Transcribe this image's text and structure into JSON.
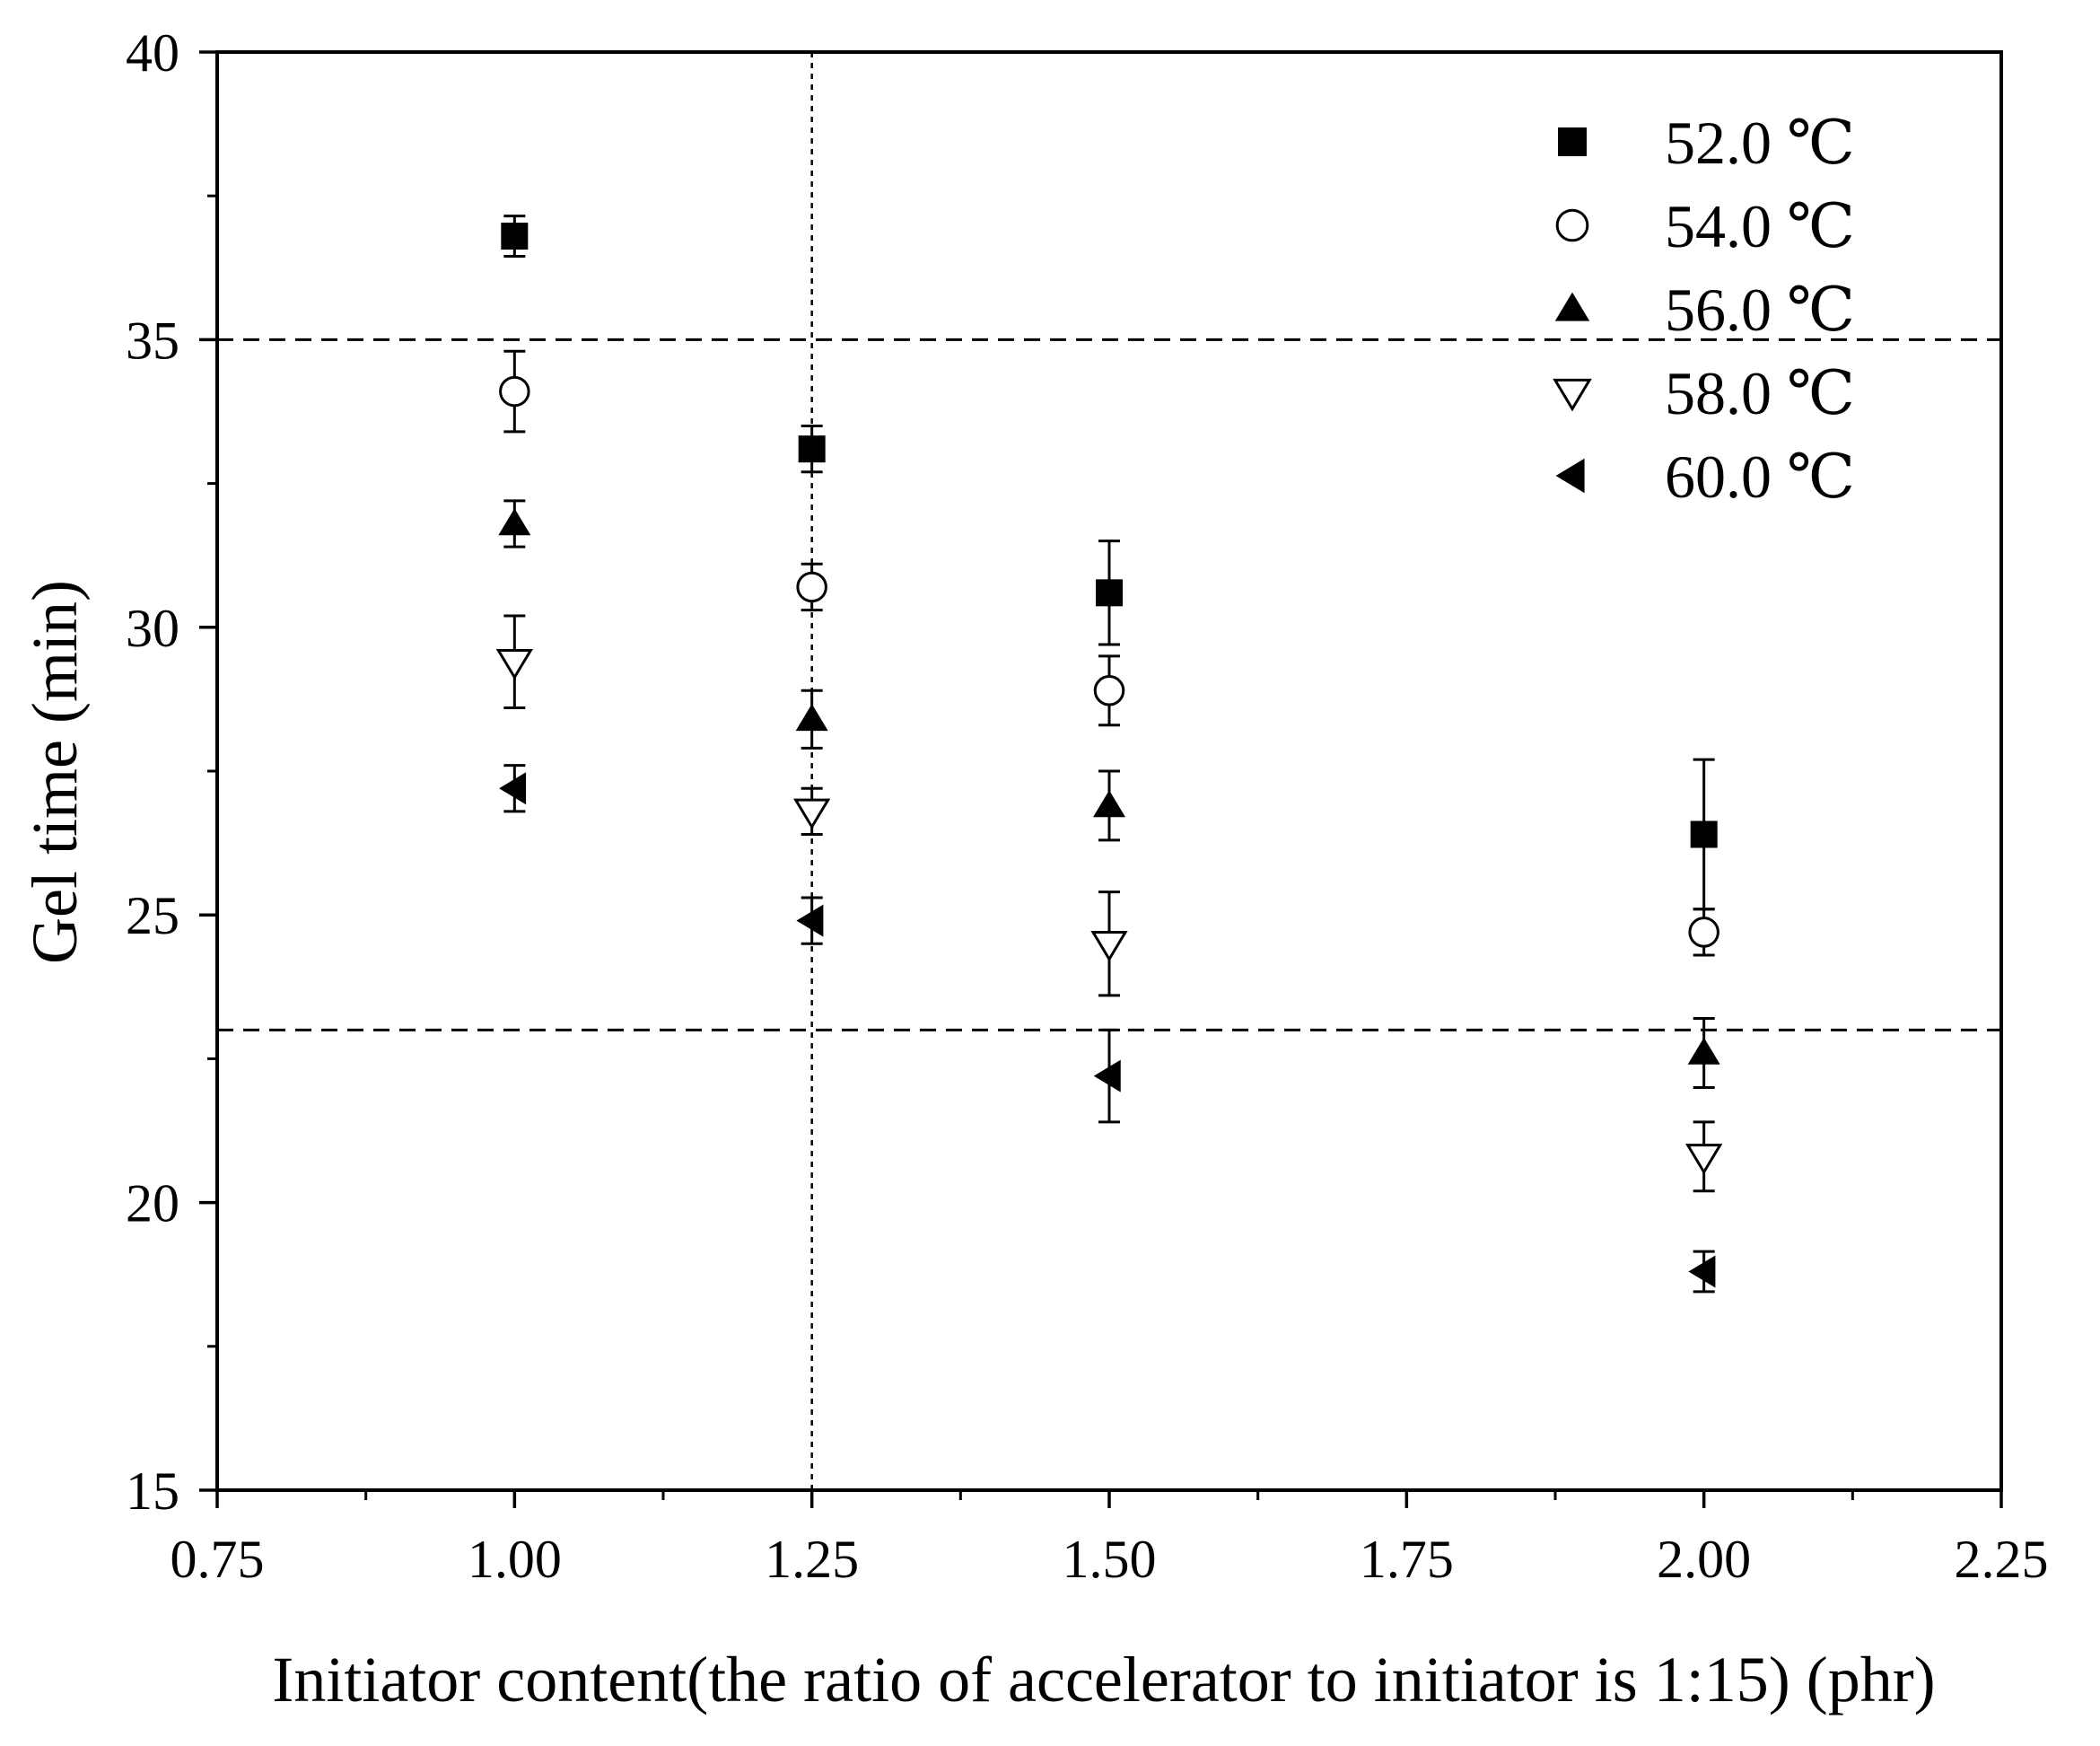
{
  "chart_data": {
    "type": "scatter",
    "title": "",
    "xlabel": "Initiator content(the ratio of accelerator to initiator is 1:15) (phr)",
    "ylabel": "Gel time (min)",
    "xlim": [
      0.75,
      2.25
    ],
    "ylim": [
      15,
      40
    ],
    "xticks": [
      "0.75",
      "1.00",
      "1.25",
      "1.50",
      "1.75",
      "2.00",
      "2.25"
    ],
    "yticks": [
      "15",
      "20",
      "25",
      "30",
      "35",
      "40"
    ],
    "grid": false,
    "legend_position": "top-right",
    "reference_lines": [
      {
        "orientation": "horizontal",
        "value": 35,
        "style": "dashed"
      },
      {
        "orientation": "horizontal",
        "value": 23,
        "style": "dashed"
      },
      {
        "orientation": "vertical",
        "value": 1.25,
        "style": "dotted"
      }
    ],
    "x": [
      1.0,
      1.25,
      1.5,
      2.0
    ],
    "series": [
      {
        "name": "52.0 ℃",
        "marker": "square-filled",
        "values": [
          36.8,
          33.1,
          30.6,
          26.4
        ],
        "errors": [
          0.35,
          0.4,
          0.9,
          1.3
        ]
      },
      {
        "name": "54.0 ℃",
        "marker": "circle-open",
        "values": [
          34.1,
          30.7,
          28.9,
          24.7
        ],
        "errors": [
          0.7,
          0.4,
          0.6,
          0.4
        ]
      },
      {
        "name": "56.0 ℃",
        "marker": "triangle-up-filled",
        "values": [
          31.8,
          28.4,
          26.9,
          22.6
        ],
        "errors": [
          0.4,
          0.5,
          0.6,
          0.6
        ]
      },
      {
        "name": "58.0 ℃",
        "marker": "triangle-down-open",
        "values": [
          29.4,
          26.8,
          24.5,
          20.8
        ],
        "errors": [
          0.8,
          0.4,
          0.9,
          0.6
        ]
      },
      {
        "name": "60.0 ℃",
        "marker": "triangle-left-filled",
        "values": [
          27.2,
          24.9,
          22.2,
          18.8
        ],
        "errors": [
          0.4,
          0.4,
          0.8,
          0.35
        ]
      }
    ]
  }
}
